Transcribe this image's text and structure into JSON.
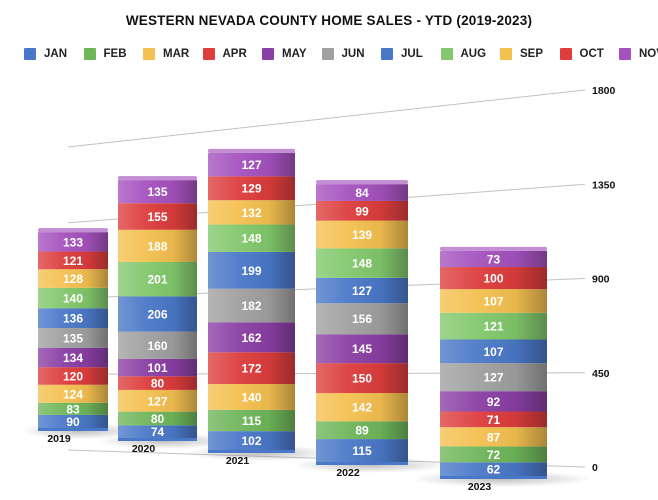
{
  "chart_data": {
    "type": "bar",
    "stacked": true,
    "title": "WESTERN NEVADA COUNTY HOME SALES - YTD (2019-2023)",
    "xlabel": "",
    "ylabel": "",
    "categories": [
      "2019",
      "2020",
      "2021",
      "2022",
      "2023"
    ],
    "ylim": [
      0,
      1800
    ],
    "yticks": [
      "0",
      "450",
      "900",
      "1350",
      "1800"
    ],
    "legend_position": "top",
    "series": [
      {
        "name": "JAN",
        "color": "#4a78c8",
        "values": [
          90,
          74,
          102,
          115,
          62
        ]
      },
      {
        "name": "FEB",
        "color": "#6fb65a",
        "values": [
          83,
          80,
          115,
          89,
          72
        ]
      },
      {
        "name": "MAR",
        "color": "#f4c050",
        "values": [
          124,
          127,
          140,
          142,
          87
        ]
      },
      {
        "name": "APR",
        "color": "#dd3d3d",
        "values": [
          120,
          80,
          172,
          150,
          71
        ]
      },
      {
        "name": "MAY",
        "color": "#8a3fa4",
        "values": [
          134,
          101,
          162,
          145,
          92
        ]
      },
      {
        "name": "JUN",
        "color": "#a0a0a0",
        "values": [
          135,
          160,
          182,
          156,
          127
        ]
      },
      {
        "name": "JUL",
        "color": "#4a78c8",
        "values": [
          136,
          206,
          199,
          127,
          107
        ]
      },
      {
        "name": "AUG",
        "color": "#82c86c",
        "values": [
          140,
          201,
          148,
          148,
          121
        ]
      },
      {
        "name": "SEP",
        "color": "#f4c050",
        "values": [
          128,
          188,
          132,
          139,
          107
        ]
      },
      {
        "name": "OCT",
        "color": "#dd3d3d",
        "values": [
          121,
          155,
          129,
          99,
          100
        ]
      },
      {
        "name": "NOV",
        "color": "#a552be",
        "values": [
          133,
          135,
          127,
          84,
          73
        ]
      }
    ]
  }
}
